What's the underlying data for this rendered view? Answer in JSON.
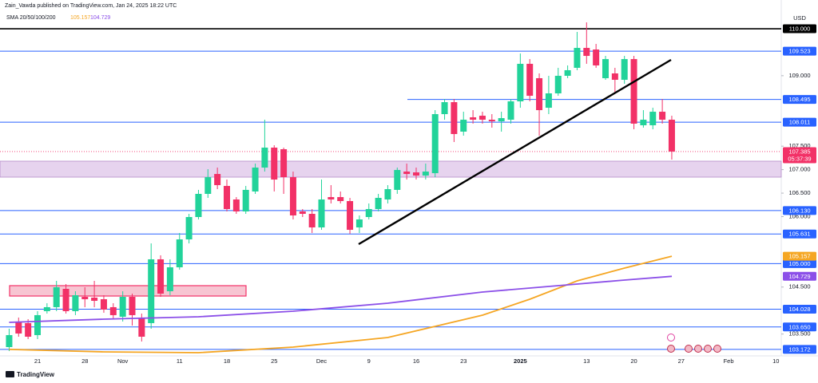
{
  "header": {
    "author_line": "Zain_Vawda published on TradingView.com, Jan 24, 2025 18:22 UTC"
  },
  "chart_data": {
    "type": "candlestick",
    "indicator_name": "SMA 20/50/100/200",
    "currency": "USD",
    "countdown": "05:37:39",
    "logo": "TradingView",
    "up_color": "#22d39a",
    "down_color": "#f23167",
    "categories": [
      null,
      null,
      null,
      "21",
      null,
      null,
      null,
      null,
      "28",
      null,
      null,
      null,
      "Nov",
      null,
      null,
      null,
      null,
      null,
      "11",
      null,
      null,
      null,
      null,
      "18",
      null,
      null,
      null,
      null,
      "25",
      null,
      null,
      null,
      null,
      "Dec",
      null,
      null,
      null,
      null,
      "9",
      null,
      null,
      null,
      null,
      "16",
      null,
      null,
      null,
      null,
      "23",
      null,
      null,
      null,
      null,
      null,
      "2025",
      null,
      null,
      null,
      null,
      null,
      null,
      "13",
      null,
      null,
      null,
      null,
      "20",
      null,
      null,
      null,
      null,
      "27",
      null,
      null,
      null,
      null,
      "Feb",
      null,
      null,
      null,
      null,
      "10"
    ],
    "open": [
      103.222,
      103.766,
      103.732,
      103.477,
      103.987,
      104.072,
      104.462,
      103.987,
      104.292,
      104.275,
      104.241,
      104.072,
      103.868,
      104.292,
      103.851,
      103.732,
      105.091,
      104.411,
      104.921,
      105.515,
      105.991,
      106.484,
      106.908,
      106.653,
      106.365,
      106.11,
      106.535,
      107.044,
      107.469,
      107.435,
      106.84,
      106.11,
      106.059,
      105.77,
      106.416,
      106.416,
      106.331,
      105.77,
      105.991,
      106.161,
      106.365,
      106.569,
      106.959,
      106.942,
      106.874,
      106.925,
      108.182,
      108.437,
      107.809,
      108.114,
      108.148,
      108.063,
      108.029,
      108.063,
      108.454,
      109.253,
      108.947,
      108.318,
      108.624,
      108.998,
      109.168,
      109.592,
      109.558,
      108.947,
      109.049,
      108.913,
      109.354,
      107.945,
      107.945,
      108.233,
      108.063,
      null,
      null,
      null,
      null,
      null,
      null,
      null,
      null,
      null,
      null,
      null
    ],
    "high": [
      103.613,
      103.851,
      103.817,
      103.987,
      104.156,
      104.632,
      104.564,
      104.411,
      104.496,
      104.632,
      104.326,
      104.156,
      104.411,
      104.36,
      103.936,
      105.43,
      105.176,
      105.091,
      105.651,
      106.059,
      106.569,
      107.01,
      107.044,
      106.789,
      106.416,
      106.653,
      107.129,
      108.063,
      107.52,
      107.469,
      106.959,
      106.161,
      106.161,
      106.789,
      106.67,
      106.535,
      106.399,
      106.025,
      106.28,
      106.484,
      106.67,
      107.044,
      107.129,
      107.044,
      107.129,
      108.267,
      108.505,
      108.505,
      108.233,
      108.267,
      108.233,
      108.182,
      108.233,
      108.505,
      109.473,
      109.354,
      109.049,
      108.998,
      109.168,
      109.219,
      109.932,
      110.136,
      109.677,
      109.422,
      109.168,
      109.422,
      109.422,
      108.267,
      108.318,
      108.505,
      108.148,
      null,
      null,
      null,
      null,
      null,
      null,
      null,
      null,
      null,
      null,
      null
    ],
    "low": [
      103.137,
      103.443,
      103.392,
      103.392,
      103.936,
      103.987,
      103.936,
      103.902,
      104.072,
      104.072,
      103.953,
      103.817,
      103.766,
      103.681,
      103.341,
      103.613,
      104.292,
      104.326,
      104.87,
      105.43,
      105.94,
      106.399,
      106.585,
      106.11,
      106.059,
      106.059,
      106.484,
      106.959,
      106.535,
      106.484,
      105.94,
      105.991,
      105.651,
      105.719,
      106.28,
      106.28,
      105.634,
      105.651,
      105.94,
      106.11,
      106.28,
      106.484,
      106.789,
      106.789,
      106.789,
      106.84,
      108.063,
      107.588,
      107.724,
      107.979,
      107.979,
      107.894,
      107.809,
      107.979,
      108.318,
      108.454,
      107.724,
      108.182,
      108.573,
      108.947,
      109.117,
      109.253,
      109.168,
      108.913,
      108.624,
      108.828,
      107.86,
      107.894,
      107.86,
      107.979,
      107.214,
      null,
      null,
      null,
      null,
      null,
      null,
      null,
      null,
      null,
      null,
      null
    ],
    "close": [
      103.477,
      103.511,
      103.443,
      103.902,
      104.072,
      104.496,
      103.987,
      104.326,
      104.241,
      104.207,
      104.021,
      103.902,
      104.292,
      103.902,
      103.443,
      105.091,
      104.36,
      104.921,
      105.515,
      105.991,
      106.484,
      106.84,
      106.67,
      106.161,
      106.11,
      106.569,
      107.044,
      107.469,
      106.789,
      106.84,
      106.025,
      106.059,
      105.77,
      106.365,
      106.365,
      106.331,
      105.719,
      105.94,
      106.161,
      106.399,
      106.585,
      106.993,
      106.908,
      106.874,
      106.959,
      108.182,
      108.437,
      107.758,
      108.063,
      108.063,
      108.063,
      108.029,
      108.097,
      108.454,
      109.253,
      108.573,
      108.267,
      108.624,
      108.998,
      109.117,
      109.592,
      109.422,
      109.219,
      109.354,
      108.913,
      109.354,
      107.979,
      108.063,
      108.233,
      108.063,
      107.385,
      null,
      null,
      null,
      null,
      null,
      null,
      null,
      null,
      null,
      null,
      null
    ],
    "series": [
      {
        "color": "#f5a623",
        "x": [
          0,
          10,
          20,
          30,
          40,
          50,
          55,
          60,
          65,
          70
        ],
        "values": [
          103.172,
          103.12,
          103.103,
          103.222,
          103.426,
          103.902,
          104.241,
          104.632,
          104.904,
          105.157
        ]
      },
      {
        "color": "#8b4fe8",
        "x": [
          0,
          10,
          20,
          30,
          40,
          50,
          60,
          65,
          70
        ],
        "values": [
          103.749,
          103.817,
          103.868,
          103.987,
          104.156,
          104.394,
          104.564,
          104.649,
          104.729
        ]
      }
    ],
    "ylim": [
      103.052,
      110.357
    ],
    "yticks": [
      {
        "value": 109,
        "label": "109.000"
      },
      {
        "value": 107.5,
        "label": "107.500"
      },
      {
        "value": 107,
        "label": "107.000"
      },
      {
        "value": 106.5,
        "label": "106.500"
      },
      {
        "value": 106,
        "label": "106.000"
      },
      {
        "value": 104.5,
        "label": "104.500"
      },
      {
        "value": 103.5,
        "label": "103.500"
      }
    ],
    "levels": [
      {
        "value": 110,
        "label": "110.000",
        "color": "#000000"
      },
      {
        "value": 109.523,
        "color": "#2962ff"
      },
      {
        "value": 108.495,
        "color": "#2962ff"
      },
      {
        "value": 108.011,
        "color": "#2962ff"
      },
      {
        "value": 106.13,
        "label": "106.130",
        "color": "#2962ff"
      },
      {
        "value": 105.631,
        "color": "#2962ff"
      },
      {
        "value": 105,
        "label": "105.000",
        "color": "#2962ff"
      },
      {
        "value": 104.028,
        "color": "#2962ff"
      },
      {
        "value": 103.65,
        "label": "103.650",
        "color": "#2962ff"
      },
      {
        "value": 103.172,
        "color": "#2962ff"
      }
    ]
  }
}
